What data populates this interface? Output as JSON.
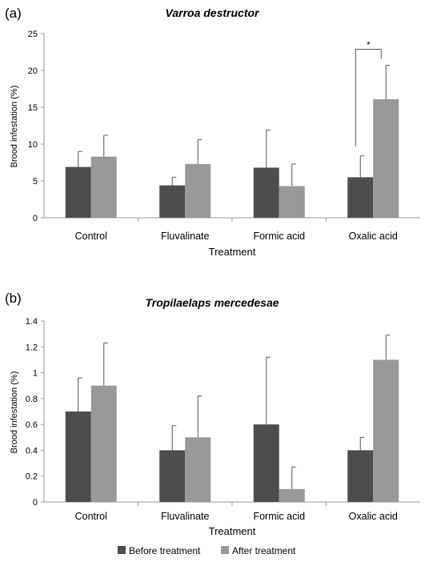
{
  "panels": [
    {
      "panel_label": "(a)",
      "title": "Varroa destructor",
      "xlabel": "Treatment",
      "ylabel": "Brood infestation (%)",
      "categories": [
        "Control",
        "Fluvalinate",
        "Formic acid",
        "Oxalic acid"
      ],
      "y_ticks": [
        "0",
        "5",
        "10",
        "15",
        "20",
        "25"
      ],
      "significance_mark": "*"
    },
    {
      "panel_label": "(b)",
      "title": "Tropilaelaps mercedesae",
      "xlabel": "Treatment",
      "ylabel": "Brood infestation (%)",
      "categories": [
        "Control",
        "Fluvalinate",
        "Formic acid",
        "Oxalic acid"
      ],
      "y_ticks": [
        "0",
        "0.2",
        "0.4",
        "0.6",
        "0.8",
        "1",
        "1.2",
        "1.4"
      ]
    }
  ],
  "legend": {
    "before_label": "Before treatment",
    "after_label": "After treatment"
  },
  "colors": {
    "before": "#4d4d4d",
    "after": "#999999",
    "axis": "#9a9a9a"
  },
  "chart_data": [
    {
      "type": "bar",
      "title": "Varroa destructor",
      "xlabel": "Treatment",
      "ylabel": "Brood infestation (%)",
      "ylim": [
        0,
        25
      ],
      "categories": [
        "Control",
        "Fluvalinate",
        "Formic acid",
        "Oxalic acid"
      ],
      "series": [
        {
          "name": "Before treatment",
          "values": [
            6.9,
            4.4,
            6.8,
            5.5
          ],
          "error": [
            2.1,
            1.1,
            5.1,
            2.9
          ]
        },
        {
          "name": "After treatment",
          "values": [
            8.3,
            7.3,
            4.3,
            16.1
          ],
          "error": [
            2.9,
            3.3,
            3.0,
            4.6
          ]
        }
      ],
      "annotations": [
        {
          "text": "*",
          "category": "Oxalic acid"
        }
      ]
    },
    {
      "type": "bar",
      "title": "Tropilaelaps mercedesae",
      "xlabel": "Treatment",
      "ylabel": "Brood infestation (%)",
      "ylim": [
        0,
        1.4
      ],
      "categories": [
        "Control",
        "Fluvalinate",
        "Formic acid",
        "Oxalic acid"
      ],
      "series": [
        {
          "name": "Before treatment",
          "values": [
            0.7,
            0.4,
            0.6,
            0.4
          ],
          "error": [
            0.26,
            0.19,
            0.52,
            0.1
          ]
        },
        {
          "name": "After treatment",
          "values": [
            0.9,
            0.5,
            0.1,
            1.1
          ],
          "error": [
            0.33,
            0.32,
            0.17,
            0.19
          ]
        }
      ]
    }
  ]
}
